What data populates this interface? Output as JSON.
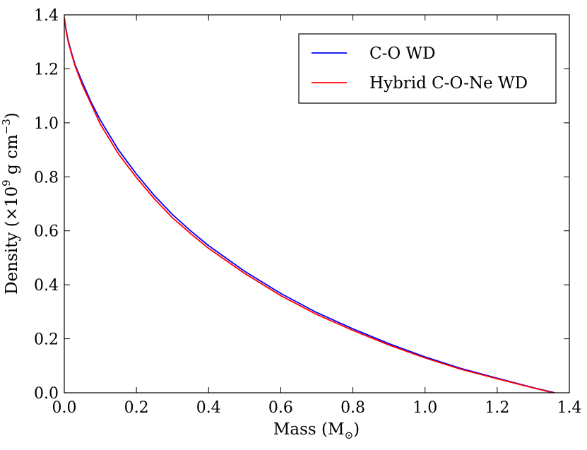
{
  "chart_data": {
    "type": "line",
    "title": "",
    "xlabel": "Mass (M",
    "xlabel_sub": "⊙",
    "xlabel_close": ")",
    "ylabel_main": "Density (×10",
    "ylabel_sup9": "9",
    "ylabel_unit": " g cm",
    "ylabel_supneg3": "−3",
    "ylabel_close": ")",
    "xlim": [
      0.0,
      1.4
    ],
    "ylim": [
      0.0,
      1.4
    ],
    "xticks": [
      "0.0",
      "0.2",
      "0.4",
      "0.6",
      "0.8",
      "1.0",
      "1.2",
      "1.4"
    ],
    "yticks": [
      "0.0",
      "0.2",
      "0.4",
      "0.6",
      "0.8",
      "1.0",
      "1.2",
      "1.4"
    ],
    "grid": false,
    "legend_position": "top-right",
    "series": [
      {
        "name": "C-O WD",
        "color": "#0000ff",
        "x": [
          0.0,
          0.005,
          0.01,
          0.02,
          0.03,
          0.05,
          0.075,
          0.1,
          0.15,
          0.2,
          0.25,
          0.3,
          0.35,
          0.4,
          0.5,
          0.6,
          0.7,
          0.8,
          0.9,
          1.0,
          1.1,
          1.2,
          1.3,
          1.36
        ],
        "y": [
          1.39,
          1.345,
          1.31,
          1.26,
          1.215,
          1.15,
          1.075,
          1.01,
          0.9,
          0.81,
          0.73,
          0.66,
          0.6,
          0.545,
          0.45,
          0.368,
          0.297,
          0.237,
          0.182,
          0.133,
          0.09,
          0.054,
          0.019,
          0.0
        ]
      },
      {
        "name": "Hybrid C-O-Ne WD",
        "color": "#ff0000",
        "x": [
          0.0,
          0.005,
          0.01,
          0.02,
          0.03,
          0.05,
          0.075,
          0.098,
          0.1,
          0.15,
          0.2,
          0.25,
          0.3,
          0.35,
          0.4,
          0.5,
          0.6,
          0.7,
          0.8,
          0.9,
          1.0,
          1.1,
          1.2,
          1.3,
          1.355
        ],
        "y": [
          1.39,
          1.34,
          1.305,
          1.255,
          1.21,
          1.14,
          1.068,
          1.0,
          0.995,
          0.885,
          0.797,
          0.718,
          0.648,
          0.59,
          0.535,
          0.442,
          0.36,
          0.29,
          0.231,
          0.177,
          0.129,
          0.087,
          0.052,
          0.018,
          0.0
        ]
      }
    ]
  }
}
